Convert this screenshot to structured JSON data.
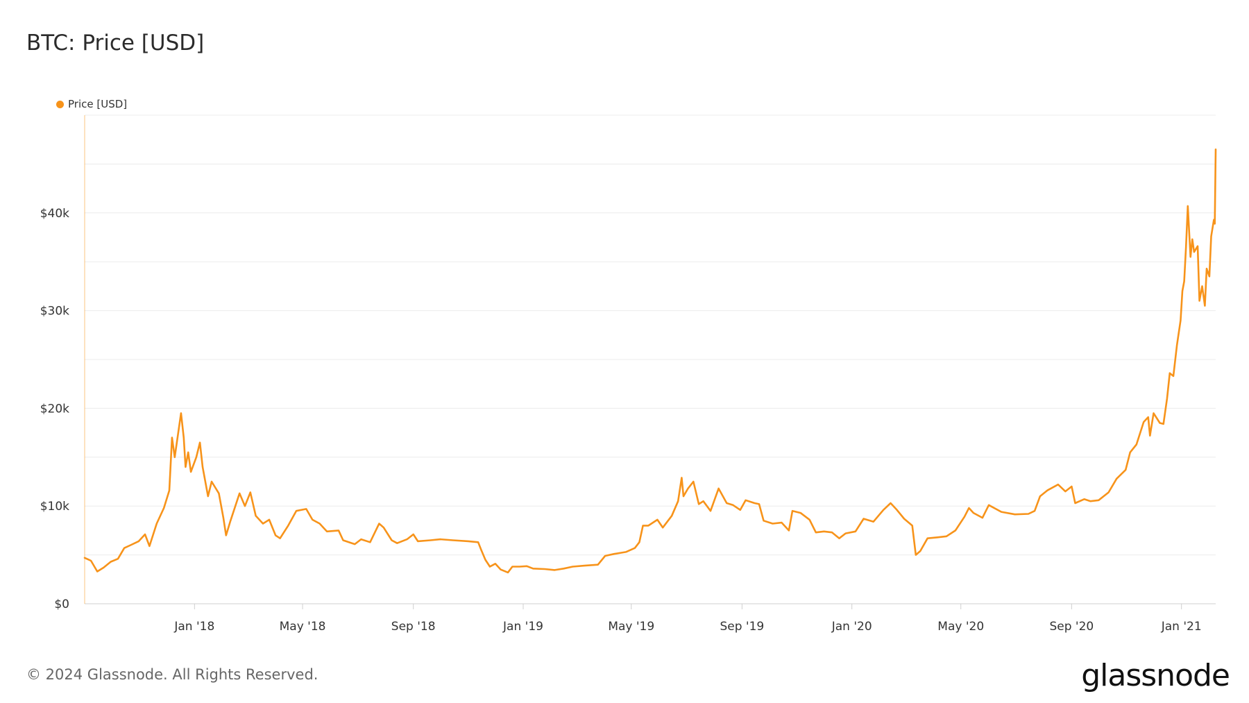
{
  "header": {
    "title": "BTC: Price [USD]"
  },
  "footer": {
    "copyright": "© 2024 Glassnode. All Rights Reserved.",
    "brand": "glassnode"
  },
  "colors": {
    "series": "#f7931a",
    "grid": "#ececec"
  },
  "chart_data": {
    "type": "line",
    "title": "BTC: Price [USD]",
    "xlabel": "",
    "ylabel": "",
    "grid": true,
    "legend_position": "top-left",
    "ylim": [
      0,
      50000
    ],
    "xlim": [
      "2017-09-01",
      "2021-02-08"
    ],
    "y_ticks": [
      {
        "value": 0,
        "label": "$0"
      },
      {
        "value": 10000,
        "label": "$10k"
      },
      {
        "value": 20000,
        "label": "$20k"
      },
      {
        "value": 30000,
        "label": "$30k"
      },
      {
        "value": 40000,
        "label": "$40k"
      }
    ],
    "x_ticks": [
      {
        "date": "2018-01-01",
        "label": "Jan '18"
      },
      {
        "date": "2018-05-01",
        "label": "May '18"
      },
      {
        "date": "2018-09-01",
        "label": "Sep '18"
      },
      {
        "date": "2019-01-01",
        "label": "Jan '19"
      },
      {
        "date": "2019-05-01",
        "label": "May '19"
      },
      {
        "date": "2019-09-01",
        "label": "Sep '19"
      },
      {
        "date": "2020-01-01",
        "label": "Jan '20"
      },
      {
        "date": "2020-05-01",
        "label": "May '20"
      },
      {
        "date": "2020-09-01",
        "label": "Sep '20"
      },
      {
        "date": "2021-01-01",
        "label": "Jan '21"
      }
    ],
    "series": [
      {
        "name": "Price [USD]",
        "points": [
          [
            "2017-09-01",
            4700
          ],
          [
            "2017-09-08",
            4400
          ],
          [
            "2017-09-15",
            3300
          ],
          [
            "2017-09-22",
            3700
          ],
          [
            "2017-09-30",
            4300
          ],
          [
            "2017-10-08",
            4600
          ],
          [
            "2017-10-15",
            5700
          ],
          [
            "2017-10-22",
            6000
          ],
          [
            "2017-10-31",
            6400
          ],
          [
            "2017-11-07",
            7100
          ],
          [
            "2017-11-12",
            5900
          ],
          [
            "2017-11-20",
            8200
          ],
          [
            "2017-11-28",
            9800
          ],
          [
            "2017-12-04",
            11600
          ],
          [
            "2017-12-07",
            17000
          ],
          [
            "2017-12-10",
            15000
          ],
          [
            "2017-12-17",
            19500
          ],
          [
            "2017-12-20",
            17000
          ],
          [
            "2017-12-22",
            14000
          ],
          [
            "2017-12-25",
            15500
          ],
          [
            "2017-12-28",
            13500
          ],
          [
            "2018-01-03",
            15000
          ],
          [
            "2018-01-07",
            16500
          ],
          [
            "2018-01-10",
            14000
          ],
          [
            "2018-01-16",
            11000
          ],
          [
            "2018-01-20",
            12500
          ],
          [
            "2018-01-28",
            11300
          ],
          [
            "2018-02-02",
            8800
          ],
          [
            "2018-02-05",
            7000
          ],
          [
            "2018-02-10",
            8500
          ],
          [
            "2018-02-20",
            11300
          ],
          [
            "2018-02-26",
            10000
          ],
          [
            "2018-03-04",
            11400
          ],
          [
            "2018-03-10",
            9000
          ],
          [
            "2018-03-18",
            8200
          ],
          [
            "2018-03-25",
            8600
          ],
          [
            "2018-04-01",
            7000
          ],
          [
            "2018-04-06",
            6700
          ],
          [
            "2018-04-15",
            8000
          ],
          [
            "2018-04-24",
            9500
          ],
          [
            "2018-05-05",
            9700
          ],
          [
            "2018-05-12",
            8600
          ],
          [
            "2018-05-20",
            8200
          ],
          [
            "2018-05-28",
            7400
          ],
          [
            "2018-06-10",
            7500
          ],
          [
            "2018-06-15",
            6500
          ],
          [
            "2018-06-28",
            6100
          ],
          [
            "2018-07-05",
            6600
          ],
          [
            "2018-07-15",
            6300
          ],
          [
            "2018-07-25",
            8200
          ],
          [
            "2018-07-30",
            7800
          ],
          [
            "2018-08-08",
            6500
          ],
          [
            "2018-08-14",
            6200
          ],
          [
            "2018-08-25",
            6600
          ],
          [
            "2018-09-01",
            7100
          ],
          [
            "2018-09-06",
            6400
          ],
          [
            "2018-09-20",
            6500
          ],
          [
            "2018-10-01",
            6600
          ],
          [
            "2018-10-15",
            6500
          ],
          [
            "2018-11-01",
            6400
          ],
          [
            "2018-11-12",
            6300
          ],
          [
            "2018-11-15",
            5600
          ],
          [
            "2018-11-20",
            4500
          ],
          [
            "2018-11-25",
            3800
          ],
          [
            "2018-12-01",
            4100
          ],
          [
            "2018-12-07",
            3500
          ],
          [
            "2018-12-15",
            3200
          ],
          [
            "2018-12-20",
            3800
          ],
          [
            "2018-12-28",
            3800
          ],
          [
            "2019-01-05",
            3850
          ],
          [
            "2019-01-12",
            3600
          ],
          [
            "2019-01-25",
            3550
          ],
          [
            "2019-02-05",
            3450
          ],
          [
            "2019-02-15",
            3600
          ],
          [
            "2019-02-25",
            3800
          ],
          [
            "2019-03-10",
            3900
          ],
          [
            "2019-03-25",
            4000
          ],
          [
            "2019-04-02",
            4900
          ],
          [
            "2019-04-12",
            5100
          ],
          [
            "2019-04-25",
            5300
          ],
          [
            "2019-05-05",
            5700
          ],
          [
            "2019-05-10",
            6300
          ],
          [
            "2019-05-14",
            8000
          ],
          [
            "2019-05-20",
            8000
          ],
          [
            "2019-05-30",
            8600
          ],
          [
            "2019-06-05",
            7800
          ],
          [
            "2019-06-15",
            9000
          ],
          [
            "2019-06-22",
            10500
          ],
          [
            "2019-06-26",
            12900
          ],
          [
            "2019-06-28",
            11000
          ],
          [
            "2019-07-03",
            11800
          ],
          [
            "2019-07-09",
            12500
          ],
          [
            "2019-07-15",
            10200
          ],
          [
            "2019-07-20",
            10500
          ],
          [
            "2019-07-28",
            9500
          ],
          [
            "2019-08-06",
            11800
          ],
          [
            "2019-08-15",
            10300
          ],
          [
            "2019-08-22",
            10100
          ],
          [
            "2019-08-30",
            9600
          ],
          [
            "2019-09-05",
            10600
          ],
          [
            "2019-09-15",
            10300
          ],
          [
            "2019-09-20",
            10200
          ],
          [
            "2019-09-25",
            8500
          ],
          [
            "2019-10-05",
            8200
          ],
          [
            "2019-10-15",
            8300
          ],
          [
            "2019-10-23",
            7500
          ],
          [
            "2019-10-27",
            9500
          ],
          [
            "2019-11-05",
            9300
          ],
          [
            "2019-11-15",
            8600
          ],
          [
            "2019-11-22",
            7300
          ],
          [
            "2019-12-01",
            7400
          ],
          [
            "2019-12-10",
            7300
          ],
          [
            "2019-12-18",
            6700
          ],
          [
            "2019-12-25",
            7200
          ],
          [
            "2020-01-05",
            7400
          ],
          [
            "2020-01-14",
            8700
          ],
          [
            "2020-01-25",
            8400
          ],
          [
            "2020-02-05",
            9600
          ],
          [
            "2020-02-13",
            10300
          ],
          [
            "2020-02-20",
            9600
          ],
          [
            "2020-02-28",
            8700
          ],
          [
            "2020-03-08",
            8000
          ],
          [
            "2020-03-12",
            5000
          ],
          [
            "2020-03-17",
            5400
          ],
          [
            "2020-03-25",
            6700
          ],
          [
            "2020-04-05",
            6800
          ],
          [
            "2020-04-15",
            6900
          ],
          [
            "2020-04-25",
            7500
          ],
          [
            "2020-05-05",
            8900
          ],
          [
            "2020-05-10",
            9800
          ],
          [
            "2020-05-15",
            9300
          ],
          [
            "2020-05-25",
            8800
          ],
          [
            "2020-06-01",
            10100
          ],
          [
            "2020-06-15",
            9400
          ],
          [
            "2020-06-30",
            9150
          ],
          [
            "2020-07-15",
            9200
          ],
          [
            "2020-07-22",
            9500
          ],
          [
            "2020-07-28",
            11000
          ],
          [
            "2020-08-05",
            11600
          ],
          [
            "2020-08-17",
            12200
          ],
          [
            "2020-08-25",
            11500
          ],
          [
            "2020-09-01",
            12000
          ],
          [
            "2020-09-05",
            10300
          ],
          [
            "2020-09-15",
            10700
          ],
          [
            "2020-09-22",
            10500
          ],
          [
            "2020-10-01",
            10600
          ],
          [
            "2020-10-12",
            11400
          ],
          [
            "2020-10-21",
            12800
          ],
          [
            "2020-10-31",
            13700
          ],
          [
            "2020-11-05",
            15500
          ],
          [
            "2020-11-12",
            16300
          ],
          [
            "2020-11-20",
            18600
          ],
          [
            "2020-11-25",
            19100
          ],
          [
            "2020-11-27",
            17200
          ],
          [
            "2020-12-01",
            19500
          ],
          [
            "2020-12-08",
            18500
          ],
          [
            "2020-12-12",
            18400
          ],
          [
            "2020-12-16",
            21000
          ],
          [
            "2020-12-19",
            23600
          ],
          [
            "2020-12-23",
            23300
          ],
          [
            "2020-12-27",
            26500
          ],
          [
            "2020-12-31",
            29000
          ],
          [
            "2021-01-02",
            32000
          ],
          [
            "2021-01-04",
            33000
          ],
          [
            "2021-01-06",
            36500
          ],
          [
            "2021-01-08",
            40700
          ],
          [
            "2021-01-11",
            35500
          ],
          [
            "2021-01-13",
            37300
          ],
          [
            "2021-01-15",
            36000
          ],
          [
            "2021-01-19",
            36600
          ],
          [
            "2021-01-21",
            31000
          ],
          [
            "2021-01-24",
            32500
          ],
          [
            "2021-01-27",
            30500
          ],
          [
            "2021-01-29",
            34300
          ],
          [
            "2021-02-01",
            33500
          ],
          [
            "2021-02-03",
            37600
          ],
          [
            "2021-02-06",
            39300
          ],
          [
            "2021-02-07",
            38900
          ],
          [
            "2021-02-08",
            46500
          ]
        ]
      }
    ]
  }
}
